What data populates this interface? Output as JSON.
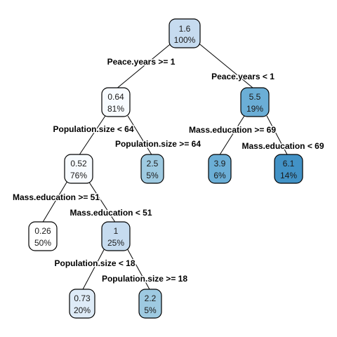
{
  "colors": {
    "root": "#c6dbef",
    "n064": "#f7fbff",
    "n052": "#f7fbff",
    "n026": "#ffffff",
    "n1": "#c6dbef",
    "n073": "#deebf7",
    "n22": "#9ecae1",
    "n25": "#9ecae1",
    "n55": "#6baed6",
    "n39": "#6baed6",
    "n61": "#4292c6"
  },
  "nodes": {
    "root": {
      "value": "1.6",
      "pct": "100%"
    },
    "n064": {
      "value": "0.64",
      "pct": "81%"
    },
    "n55": {
      "value": "5.5",
      "pct": "19%"
    },
    "n052": {
      "value": "0.52",
      "pct": "76%"
    },
    "n25": {
      "value": "2.5",
      "pct": "5%"
    },
    "n39": {
      "value": "3.9",
      "pct": "6%"
    },
    "n61": {
      "value": "6.1",
      "pct": "14%"
    },
    "n026": {
      "value": "0.26",
      "pct": "50%"
    },
    "n1": {
      "value": "1",
      "pct": "25%"
    },
    "n073": {
      "value": "0.73",
      "pct": "20%"
    },
    "n22": {
      "value": "2.2",
      "pct": "5%"
    }
  },
  "splits": {
    "peace_ge1": "Peace.years >= 1",
    "peace_lt1": "Peace.years < 1",
    "pop_lt64": "Population.size < 64",
    "pop_ge64": "Population.size >= 64",
    "mass_ge69": "Mass.education >= 69",
    "mass_lt69": "Mass.education < 69",
    "mass_ge51": "Mass.education >= 51",
    "mass_lt51": "Mass.education < 51",
    "pop_lt18": "Population.size < 18",
    "pop_ge18": "Population.size >= 18"
  }
}
